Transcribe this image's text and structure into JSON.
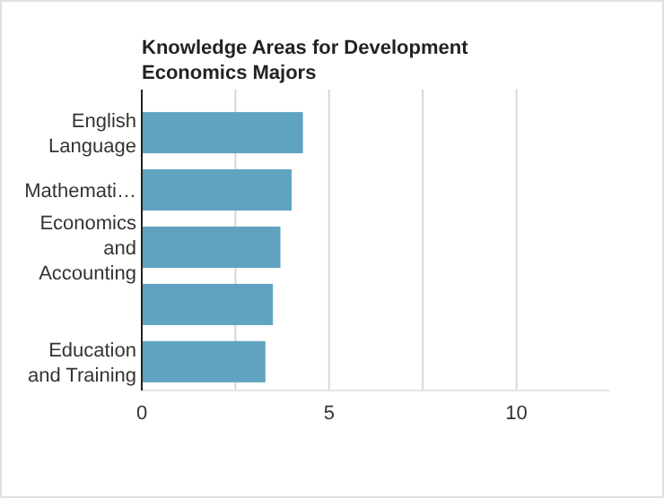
{
  "chart_data": {
    "type": "bar",
    "orientation": "horizontal",
    "title": "Knowledge Areas for Development Economics Majors",
    "categories": [
      "English Language",
      "Mathemati…",
      "Economics and Accounting",
      null,
      "Education and Training"
    ],
    "values": [
      4.3,
      4.0,
      3.7,
      3.5,
      3.3
    ],
    "color": "#5fa3c0",
    "xlim": [
      0,
      12.5
    ],
    "xticks": [
      0,
      {
        "value": 2.5,
        "label": null
      },
      5,
      {
        "value": 7.5,
        "label": null
      },
      10
    ],
    "grid": "x"
  }
}
